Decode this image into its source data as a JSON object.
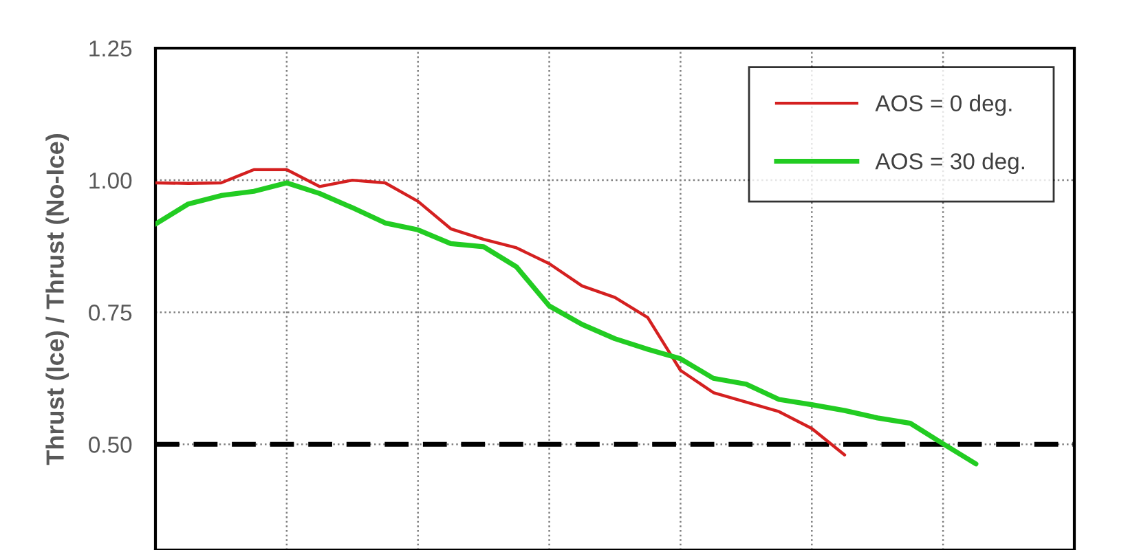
{
  "chart_data": {
    "type": "line",
    "ylabel": "Thrust (Ice) / Thrust (No-Ice)",
    "categories": [
      null,
      null,
      null,
      null,
      null,
      null,
      null,
      null,
      null,
      null,
      null,
      null,
      null,
      null,
      null,
      null,
      null,
      null,
      null,
      null,
      null,
      null,
      null,
      null,
      null,
      null,
      null,
      null,
      null
    ],
    "ylim": [
      0.3,
      1.25
    ],
    "yticks": [
      {
        "value": 0.5,
        "label": "0.50"
      },
      {
        "value": 0.75,
        "label": "0.75"
      },
      {
        "value": 1.0,
        "label": "1.00"
      },
      {
        "value": 1.25,
        "label": "1.25"
      }
    ],
    "grid": true,
    "legend": "top right",
    "marker": "none",
    "line_style": "solid",
    "ref_lines": [
      {
        "axis": "y",
        "value": 0.5,
        "color": "#000000",
        "line_style": "dashed"
      }
    ],
    "series": [
      {
        "name": "AOS = 0 deg.",
        "color": "#d42020",
        "values": [
          0.995,
          0.994,
          0.995,
          1.02,
          1.02,
          0.988,
          1.0,
          0.995,
          0.96,
          0.908,
          0.888,
          0.872,
          0.842,
          0.8,
          0.778,
          0.74,
          0.64,
          0.598,
          0.58,
          0.562,
          0.53,
          0.48,
          null,
          null,
          null,
          null,
          null,
          null,
          null
        ]
      },
      {
        "name": "AOS = 30 deg.",
        "color": "#22cc22",
        "values": [
          0.917,
          0.955,
          0.971,
          0.979,
          0.995,
          0.975,
          0.948,
          0.919,
          0.906,
          0.88,
          0.874,
          0.836,
          0.762,
          0.727,
          0.7,
          0.68,
          0.662,
          0.625,
          0.614,
          0.585,
          0.575,
          0.564,
          0.55,
          0.54,
          0.501,
          0.463,
          null,
          null,
          null
        ]
      }
    ]
  }
}
